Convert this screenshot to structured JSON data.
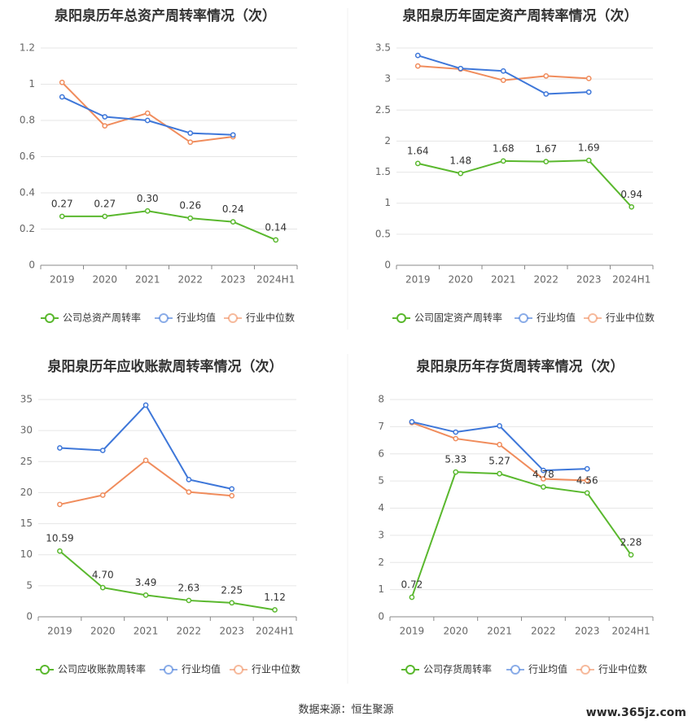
{
  "source": "数据来源：恒生聚源",
  "watermark": "www.365jz.com",
  "colors": {
    "company": "#5ab82e",
    "industry_avg": "#3e77d9",
    "industry_median": "#f08c5c"
  },
  "chart_data": [
    {
      "type": "line",
      "title": "泉阳泉历年总资产周转率情况（次）",
      "categories": [
        "2019",
        "2020",
        "2021",
        "2022",
        "2023",
        "2024H1"
      ],
      "yticks": [
        "0",
        "0.2",
        "0.4",
        "0.6",
        "0.8",
        "1",
        "1.2"
      ],
      "ylim": [
        0,
        1.2
      ],
      "grid": true,
      "legend_position": "bottom",
      "series": [
        {
          "name": "公司总资产周转率",
          "key": "company",
          "values": [
            0.27,
            0.27,
            0.3,
            0.26,
            0.24,
            0.14
          ],
          "labels": [
            "0.27",
            "0.27",
            "0.30",
            "0.26",
            "0.24",
            "0.14"
          ]
        },
        {
          "name": "行业均值",
          "key": "industry_avg",
          "values": [
            0.93,
            0.82,
            0.8,
            0.73,
            0.72,
            null
          ]
        },
        {
          "name": "行业中位数",
          "key": "industry_median",
          "values": [
            1.01,
            0.77,
            0.84,
            0.68,
            0.71,
            null
          ]
        }
      ]
    },
    {
      "type": "line",
      "title": "泉阳泉历年固定资产周转率情况（次）",
      "categories": [
        "2019",
        "2020",
        "2021",
        "2022",
        "2023",
        "2024H1"
      ],
      "yticks": [
        "0",
        "0.5",
        "1",
        "1.5",
        "2",
        "2.5",
        "3",
        "3.5"
      ],
      "ylim": [
        0,
        3.5
      ],
      "grid": true,
      "legend_position": "bottom",
      "series": [
        {
          "name": "公司固定资产周转率",
          "key": "company",
          "values": [
            1.64,
            1.48,
            1.68,
            1.67,
            1.69,
            0.94
          ],
          "labels": [
            "1.64",
            "1.48",
            "1.68",
            "1.67",
            "1.69",
            "0.94"
          ]
        },
        {
          "name": "行业均值",
          "key": "industry_avg",
          "values": [
            3.38,
            3.17,
            3.13,
            2.76,
            2.79,
            null
          ]
        },
        {
          "name": "行业中位数",
          "key": "industry_median",
          "values": [
            3.21,
            3.16,
            2.98,
            3.05,
            3.01,
            null
          ]
        }
      ]
    },
    {
      "type": "line",
      "title": "泉阳泉历年应收账款周转率情况（次）",
      "categories": [
        "2019",
        "2020",
        "2021",
        "2022",
        "2023",
        "2024H1"
      ],
      "yticks": [
        "0",
        "5",
        "10",
        "15",
        "20",
        "25",
        "30",
        "35"
      ],
      "ylim": [
        0,
        35
      ],
      "grid": true,
      "legend_position": "bottom",
      "series": [
        {
          "name": "公司应收账款周转率",
          "key": "company",
          "values": [
            10.59,
            4.7,
            3.49,
            2.63,
            2.25,
            1.12
          ],
          "labels": [
            "10.59",
            "4.70",
            "3.49",
            "2.63",
            "2.25",
            "1.12"
          ]
        },
        {
          "name": "行业均值",
          "key": "industry_avg",
          "values": [
            27.2,
            26.8,
            34.1,
            22.1,
            20.6,
            null
          ]
        },
        {
          "name": "行业中位数",
          "key": "industry_median",
          "values": [
            18.1,
            19.6,
            25.2,
            20.1,
            19.5,
            null
          ]
        }
      ]
    },
    {
      "type": "line",
      "title": "泉阳泉历年存货周转率情况（次）",
      "categories": [
        "2019",
        "2020",
        "2021",
        "2022",
        "2023",
        "2024H1"
      ],
      "yticks": [
        "0",
        "1",
        "2",
        "3",
        "4",
        "5",
        "6",
        "7",
        "8"
      ],
      "ylim": [
        0,
        8
      ],
      "grid": true,
      "legend_position": "bottom",
      "series": [
        {
          "name": "公司存货周转率",
          "key": "company",
          "values": [
            0.72,
            5.33,
            5.27,
            4.78,
            4.56,
            2.28
          ],
          "labels": [
            "0.72",
            "5.33",
            "5.27",
            "4.78",
            "4.56",
            "2.28"
          ]
        },
        {
          "name": "行业均值",
          "key": "industry_avg",
          "values": [
            7.18,
            6.8,
            7.03,
            5.39,
            5.45,
            null
          ]
        },
        {
          "name": "行业中位数",
          "key": "industry_median",
          "values": [
            7.15,
            6.56,
            6.34,
            5.08,
            5.02,
            null
          ]
        }
      ]
    }
  ]
}
